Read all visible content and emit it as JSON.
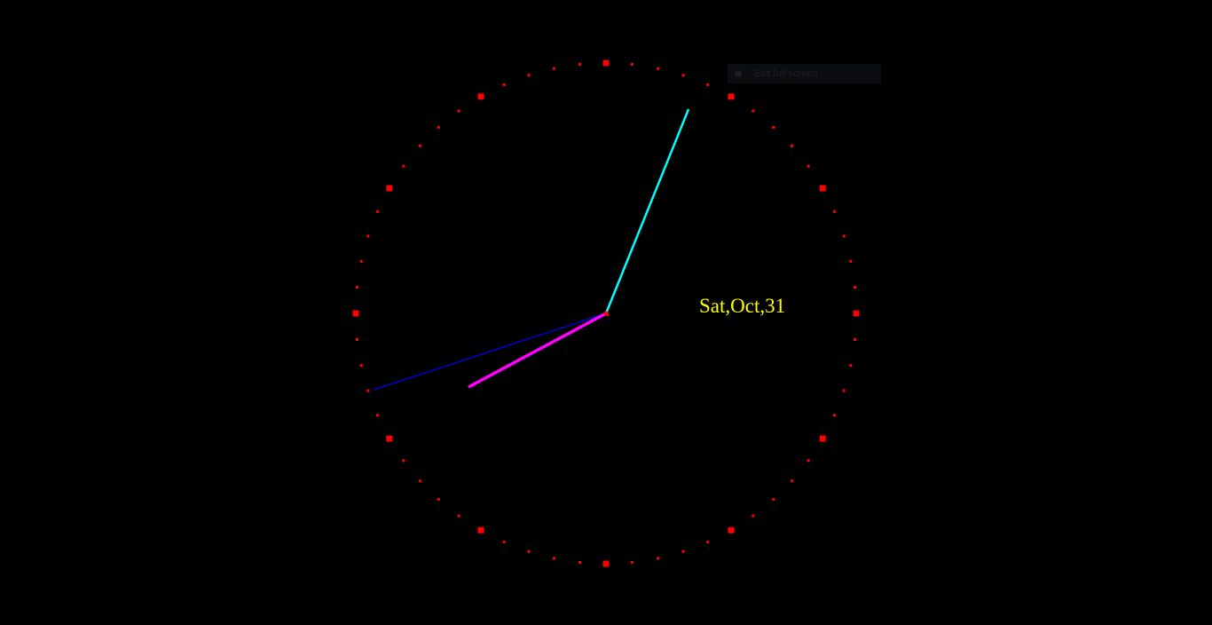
{
  "clock": {
    "background_color": "#000000",
    "tick_color": "#ff0000",
    "hands": {
      "hour": {
        "color": "#ff00ff"
      },
      "minute": {
        "color": "#00ffff"
      },
      "second": {
        "color": "#0000ff"
      }
    }
  },
  "date": {
    "text": "Sat,Oct,31",
    "color": "#ffff00"
  },
  "overlay": {
    "text": "Exit full screen"
  }
}
